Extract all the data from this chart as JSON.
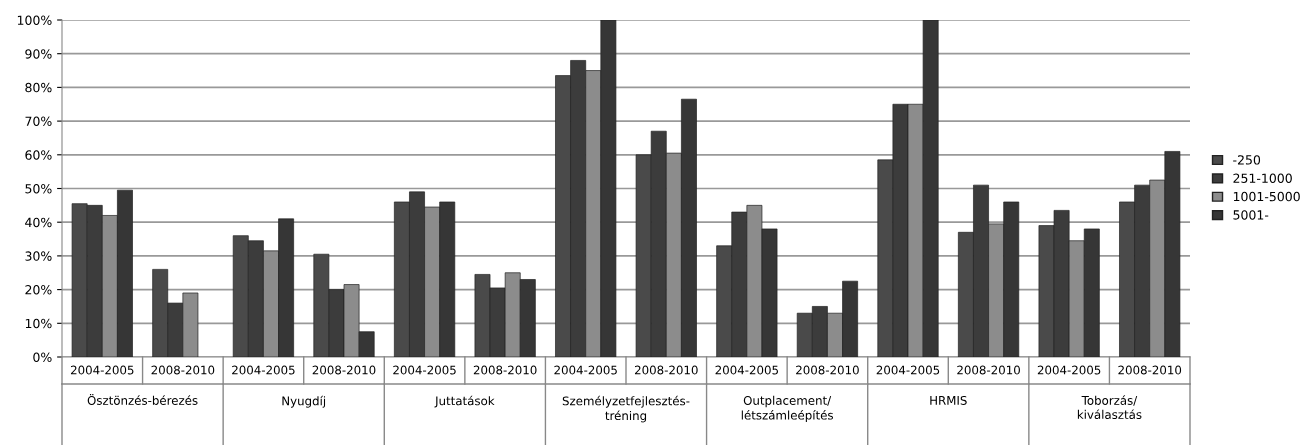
{
  "chart_data": {
    "type": "bar",
    "categories": [
      "2004-2005",
      "2008-2010",
      "2004-2005",
      "2008-2010",
      "2004-2005",
      "2008-2010",
      "2004-2005",
      "2008-2010",
      "2004-2005",
      "2008-2010",
      "2004-2005",
      "2008-2010",
      "2004-2005",
      "2008-2010"
    ],
    "annotations": [
      "Ösztönzés-bérezés",
      "Nyugdíj",
      "Juttatások",
      "Személyzetfejlesztés-\ntréning",
      "Outplacement/\nlétszámleépítés",
      "HRMIS",
      "Toborzás/\nkiválasztás"
    ],
    "series": [
      {
        "name": "-250",
        "color": "#4a4a4a",
        "values": [
          45.5,
          26,
          36,
          30.5,
          46,
          24.5,
          83.5,
          60,
          33,
          13,
          58.5,
          37,
          39,
          46
        ]
      },
      {
        "name": "251-1000",
        "color": "#3c3c3c",
        "values": [
          45,
          16,
          34.5,
          20,
          49,
          20.5,
          88,
          67,
          43,
          15,
          75,
          51,
          43.5,
          51
        ]
      },
      {
        "name": "1001-5000",
        "color": "#8c8c8c",
        "values": [
          42,
          19,
          31.5,
          21.5,
          44.5,
          25,
          85,
          60.5,
          45,
          13,
          75,
          39.5,
          34.5,
          52.5
        ]
      },
      {
        "name": "5001-",
        "color": "#363636",
        "values": [
          49.5,
          null,
          41,
          7.5,
          46,
          23,
          100,
          76.5,
          38,
          22.5,
          100,
          46,
          38,
          61
        ]
      }
    ],
    "ylim": [
      0,
      100
    ],
    "yticks": [
      {
        "value": 0,
        "label": "0%"
      },
      {
        "value": 10,
        "label": "10%"
      },
      {
        "value": 20,
        "label": "20%"
      },
      {
        "value": 30,
        "label": "30%"
      },
      {
        "value": 40,
        "label": "40%"
      },
      {
        "value": 50,
        "label": "50%"
      },
      {
        "value": 60,
        "label": "60%"
      },
      {
        "value": 70,
        "label": "70%"
      },
      {
        "value": 80,
        "label": "80%"
      },
      {
        "value": 90,
        "label": "90%"
      },
      {
        "value": 100,
        "label": "100%"
      }
    ],
    "grid": "y",
    "legend": "right"
  }
}
